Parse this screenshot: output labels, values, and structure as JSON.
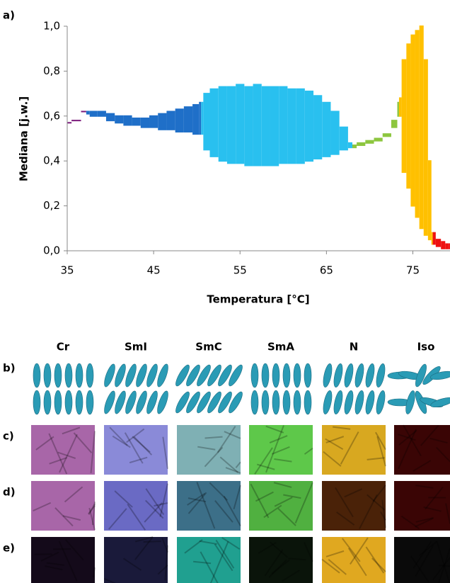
{
  "chart_data": {
    "type": "band",
    "panel_label": "a)",
    "y_label": "Mediana [j.w.]",
    "x_label": "Temperatura [°C]",
    "xlim": [
      35,
      79.3
    ],
    "ylim": [
      0,
      1.0
    ],
    "xticks": [
      35,
      45,
      55,
      65,
      75
    ],
    "yticks": [
      {
        "value": 0,
        "label": "0,0"
      },
      {
        "value": 0.2,
        "label": "0,2"
      },
      {
        "value": 0.4,
        "label": "0,4"
      },
      {
        "value": 0.6,
        "label": "0,6"
      },
      {
        "value": 0.8,
        "label": "0,8"
      },
      {
        "value": 1.0,
        "label": "1,0"
      }
    ],
    "series": [
      {
        "name": "Cr",
        "color": "#7b1a7b",
        "x": [
          35,
          36,
          37.2
        ],
        "upper": [
          0.57,
          0.58,
          0.62
        ],
        "lower": [
          0.57,
          0.58,
          0.62
        ]
      },
      {
        "name": "SmI",
        "color": "#1f6fc8",
        "x": [
          37.2,
          38,
          39,
          40,
          41,
          42,
          43,
          44,
          45,
          46,
          47,
          48,
          49,
          50,
          50.5
        ],
        "upper": [
          0.62,
          0.62,
          0.62,
          0.61,
          0.6,
          0.6,
          0.59,
          0.59,
          0.6,
          0.61,
          0.62,
          0.63,
          0.64,
          0.65,
          0.66
        ],
        "lower": [
          0.61,
          0.6,
          0.6,
          0.58,
          0.57,
          0.56,
          0.56,
          0.55,
          0.55,
          0.54,
          0.54,
          0.53,
          0.53,
          0.52,
          0.52
        ]
      },
      {
        "name": "SmC",
        "color": "#29c0ef",
        "x": [
          50.5,
          51,
          52,
          53,
          54,
          55,
          56,
          57,
          58,
          59,
          60,
          61,
          62,
          63,
          64,
          65,
          66,
          67,
          68
        ],
        "upper": [
          0.66,
          0.7,
          0.72,
          0.73,
          0.73,
          0.74,
          0.73,
          0.74,
          0.73,
          0.73,
          0.73,
          0.72,
          0.72,
          0.71,
          0.69,
          0.66,
          0.62,
          0.55,
          0.48
        ],
        "lower": [
          0.52,
          0.45,
          0.42,
          0.4,
          0.39,
          0.39,
          0.38,
          0.38,
          0.38,
          0.38,
          0.39,
          0.39,
          0.39,
          0.4,
          0.41,
          0.42,
          0.43,
          0.45,
          0.46
        ]
      },
      {
        "name": "SmA",
        "color": "#8dc63f",
        "x": [
          68,
          69,
          70,
          71,
          72,
          73,
          73.4
        ],
        "upper": [
          0.47,
          0.48,
          0.49,
          0.5,
          0.52,
          0.58,
          0.66
        ],
        "lower": [
          0.46,
          0.47,
          0.48,
          0.49,
          0.51,
          0.55,
          0.6
        ]
      },
      {
        "name": "N",
        "color": "#ffc000",
        "x": [
          73.4,
          74,
          74.5,
          75,
          75.5,
          76,
          76.5,
          77,
          77.3
        ],
        "upper": [
          0.68,
          0.85,
          0.92,
          0.96,
          0.98,
          1.0,
          0.85,
          0.4,
          0.08
        ],
        "lower": [
          0.6,
          0.35,
          0.28,
          0.2,
          0.15,
          0.1,
          0.07,
          0.05,
          0.03
        ]
      },
      {
        "name": "Iso",
        "color": "#ee1111",
        "x": [
          77.3,
          78,
          78.5,
          79,
          79.3
        ],
        "upper": [
          0.08,
          0.05,
          0.04,
          0.03,
          0.03
        ],
        "lower": [
          0.03,
          0.02,
          0.01,
          0.01,
          0.01
        ]
      }
    ]
  },
  "phases": [
    {
      "name": "Cr",
      "color": "#7030a0"
    },
    {
      "name": "SmI",
      "color": "#1a1a99"
    },
    {
      "name": "SmC",
      "color": "#33b5e5"
    },
    {
      "name": "SmA",
      "color": "#2eb050"
    },
    {
      "name": "N",
      "color": "#ffc000"
    },
    {
      "name": "Iso",
      "color": "#e00000"
    }
  ],
  "structure_label": "b)",
  "texture_rows": [
    {
      "label": "c)",
      "colors": [
        "#a866a8",
        "#8a8ad8",
        "#7fb0b4",
        "#5ec84a",
        "#d8a820",
        "#3a0505"
      ]
    },
    {
      "label": "d)",
      "colors": [
        "#a866a8",
        "#6a6ac4",
        "#3c6f88",
        "#50b040",
        "#4a2208",
        "#3a0505"
      ]
    },
    {
      "label": "e)",
      "colors": [
        "#140a1a",
        "#1a1a3a",
        "#20a090",
        "#0a140a",
        "#e0a820",
        "#0a0a0a"
      ]
    }
  ]
}
